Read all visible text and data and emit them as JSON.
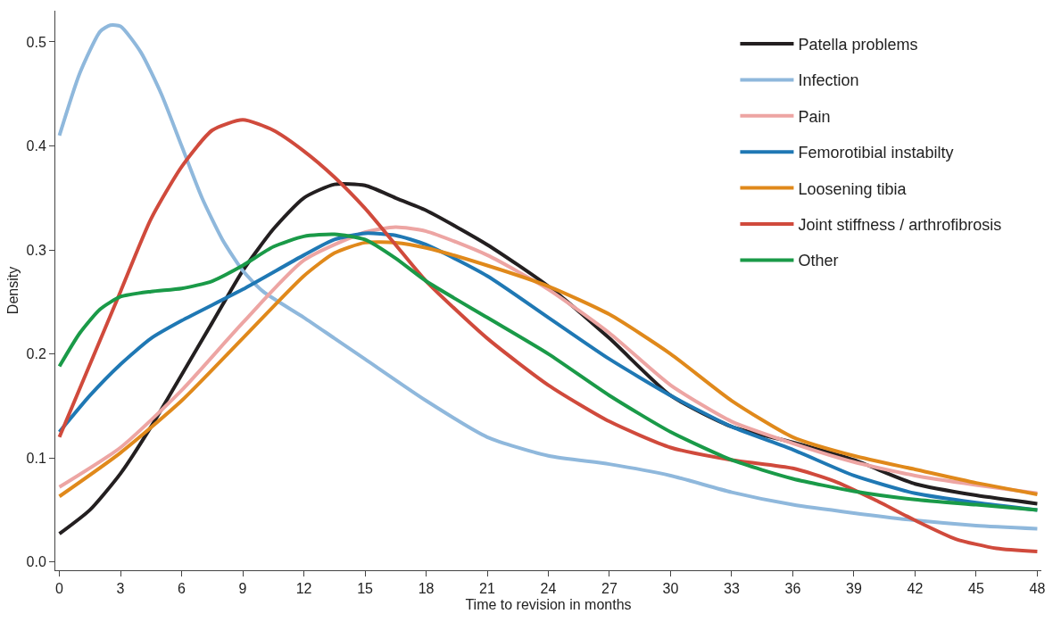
{
  "chart_data": {
    "type": "line",
    "xlabel": "Time to revision in months",
    "ylabel": "Density",
    "xlim": [
      -0.2,
      48.2
    ],
    "ylim": [
      -0.008,
      0.53
    ],
    "xticks": [
      0,
      3,
      6,
      9,
      12,
      15,
      18,
      21,
      24,
      27,
      30,
      33,
      36,
      39,
      42,
      45,
      48
    ],
    "yticks": [
      {
        "value": 0,
        "label": "0.0"
      },
      0.1,
      0.2,
      0.3,
      0.4,
      0.5
    ],
    "legend": "top right",
    "line_style": "solid",
    "marker": "none",
    "series": [
      {
        "name": "Patella problems",
        "color": "#231f20",
        "x": [
          0,
          1.5,
          3,
          4.5,
          6,
          7.5,
          9,
          10.5,
          12,
          13.5,
          15,
          16.5,
          18,
          21,
          24,
          27,
          30,
          33,
          36,
          39,
          42,
          45,
          48
        ],
        "values": [
          0.027,
          0.05,
          0.085,
          0.13,
          0.18,
          0.23,
          0.28,
          0.32,
          0.35,
          0.363,
          0.362,
          0.35,
          0.338,
          0.305,
          0.265,
          0.215,
          0.16,
          0.13,
          0.115,
          0.098,
          0.075,
          0.064,
          0.056
        ]
      },
      {
        "name": "Infection",
        "color": "#8fb8dc",
        "x": [
          0,
          1,
          2,
          2.5,
          3,
          4,
          5,
          6,
          7,
          8,
          9,
          10,
          12,
          13.5,
          15,
          18,
          21,
          24,
          27,
          30,
          33,
          36,
          39,
          42,
          45,
          48
        ],
        "values": [
          0.41,
          0.47,
          0.51,
          0.516,
          0.515,
          0.49,
          0.45,
          0.4,
          0.35,
          0.31,
          0.28,
          0.26,
          0.235,
          0.215,
          0.195,
          0.155,
          0.12,
          0.102,
          0.094,
          0.083,
          0.067,
          0.055,
          0.047,
          0.04,
          0.035,
          0.032
        ]
      },
      {
        "name": "Pain",
        "color": "#eda5a3",
        "x": [
          0,
          3,
          6,
          9,
          12,
          15,
          16.5,
          18,
          21,
          24,
          27,
          30,
          33,
          36,
          39,
          42,
          45,
          48
        ],
        "values": [
          0.072,
          0.11,
          0.165,
          0.23,
          0.29,
          0.317,
          0.322,
          0.318,
          0.295,
          0.262,
          0.22,
          0.17,
          0.135,
          0.114,
          0.096,
          0.083,
          0.074,
          0.066
        ]
      },
      {
        "name": "Femorotibial instabilty",
        "color": "#1f78b4",
        "x": [
          0,
          1.5,
          3,
          4.5,
          6,
          9,
          12,
          13.5,
          15,
          16.5,
          18,
          21,
          24,
          27,
          30,
          33,
          36,
          39,
          42,
          45,
          48
        ],
        "values": [
          0.125,
          0.16,
          0.19,
          0.215,
          0.232,
          0.262,
          0.295,
          0.31,
          0.316,
          0.314,
          0.305,
          0.275,
          0.235,
          0.195,
          0.16,
          0.13,
          0.108,
          0.083,
          0.066,
          0.057,
          0.05
        ]
      },
      {
        "name": "Loosening tibia",
        "color": "#e0891b",
        "x": [
          0,
          3,
          6,
          9,
          12,
          13.5,
          15,
          16.5,
          18,
          21,
          24,
          27,
          30,
          33,
          36,
          39,
          42,
          45,
          48
        ],
        "values": [
          0.063,
          0.105,
          0.155,
          0.215,
          0.275,
          0.297,
          0.307,
          0.307,
          0.302,
          0.285,
          0.265,
          0.238,
          0.2,
          0.155,
          0.12,
          0.102,
          0.089,
          0.076,
          0.065
        ]
      },
      {
        "name": "Joint stiffness / arthrofibrosis",
        "color": "#d04a3c",
        "x": [
          0,
          1.5,
          3,
          4.5,
          6,
          7.5,
          9,
          10.5,
          12,
          13.5,
          15,
          16.5,
          18,
          21,
          24,
          27,
          30,
          33,
          36,
          38,
          40,
          42,
          44,
          46,
          48
        ],
        "values": [
          0.12,
          0.19,
          0.26,
          0.33,
          0.38,
          0.415,
          0.425,
          0.415,
          0.395,
          0.37,
          0.34,
          0.305,
          0.27,
          0.215,
          0.17,
          0.135,
          0.11,
          0.098,
          0.09,
          0.078,
          0.06,
          0.04,
          0.022,
          0.013,
          0.01
        ]
      },
      {
        "name": "Other",
        "color": "#1a9a48",
        "x": [
          0,
          1,
          2,
          3,
          4.5,
          6,
          7.5,
          9,
          10.5,
          12,
          13.5,
          15,
          16.5,
          18,
          21,
          24,
          27,
          30,
          33,
          36,
          39,
          42,
          45,
          48
        ],
        "values": [
          0.188,
          0.22,
          0.243,
          0.255,
          0.26,
          0.263,
          0.27,
          0.285,
          0.303,
          0.313,
          0.315,
          0.31,
          0.292,
          0.27,
          0.235,
          0.2,
          0.16,
          0.125,
          0.098,
          0.08,
          0.068,
          0.06,
          0.055,
          0.05
        ]
      }
    ]
  }
}
